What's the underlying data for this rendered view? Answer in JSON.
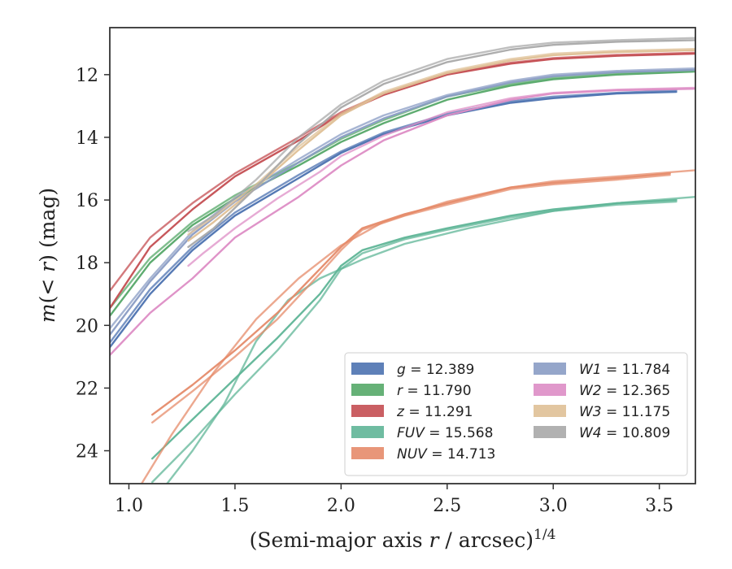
{
  "chart_data": {
    "type": "line",
    "xlabel": "(Semi-major axis r / arcsec)^1/4",
    "ylabel": "m(< r) (mag)",
    "xlim": [
      0.91,
      3.67
    ],
    "ylim": [
      25.05,
      10.5
    ],
    "y_inverted": true,
    "xticks": [
      "1.0",
      "1.5",
      "2.0",
      "2.5",
      "3.0",
      "3.5"
    ],
    "yticks": [
      "12",
      "14",
      "16",
      "18",
      "20",
      "22",
      "24"
    ],
    "grid": false,
    "legend_position": "lower-right",
    "series": [
      {
        "name": "g = 12.389",
        "color": "#4c72b0",
        "lines": [
          [
            [
              0.91,
              20.7
            ],
            [
              1.1,
              19.0
            ],
            [
              1.3,
              17.6
            ],
            [
              1.5,
              16.5
            ],
            [
              1.8,
              15.3
            ],
            [
              2.0,
              14.5
            ],
            [
              2.2,
              13.9
            ],
            [
              2.5,
              13.3
            ],
            [
              2.8,
              12.9
            ],
            [
              3.0,
              12.75
            ],
            [
              3.3,
              12.6
            ],
            [
              3.58,
              12.55
            ]
          ],
          [
            [
              0.91,
              20.55
            ],
            [
              1.1,
              18.85
            ],
            [
              1.3,
              17.5
            ],
            [
              1.5,
              16.4
            ],
            [
              1.8,
              15.2
            ],
            [
              2.0,
              14.45
            ],
            [
              2.2,
              13.85
            ],
            [
              2.5,
              13.25
            ],
            [
              2.8,
              12.85
            ],
            [
              3.0,
              12.7
            ],
            [
              3.3,
              12.58
            ],
            [
              3.58,
              12.5
            ]
          ]
        ]
      },
      {
        "name": "r = 11.790",
        "color": "#55a868",
        "lines": [
          [
            [
              0.91,
              19.7
            ],
            [
              1.1,
              18.0
            ],
            [
              1.3,
              16.8
            ],
            [
              1.5,
              15.95
            ],
            [
              1.8,
              14.9
            ],
            [
              2.0,
              14.15
            ],
            [
              2.2,
              13.55
            ],
            [
              2.5,
              12.8
            ],
            [
              2.8,
              12.35
            ],
            [
              3.0,
              12.15
            ],
            [
              3.3,
              12.0
            ],
            [
              3.67,
              11.9
            ]
          ],
          [
            [
              0.91,
              19.45
            ],
            [
              1.1,
              17.85
            ],
            [
              1.3,
              16.7
            ],
            [
              1.5,
              15.85
            ],
            [
              1.8,
              14.8
            ],
            [
              2.0,
              14.05
            ],
            [
              2.2,
              13.45
            ],
            [
              2.5,
              12.7
            ],
            [
              2.8,
              12.3
            ],
            [
              3.0,
              12.1
            ],
            [
              3.3,
              11.95
            ],
            [
              3.67,
              11.85
            ]
          ]
        ]
      },
      {
        "name": "z = 11.291",
        "color": "#c44e52",
        "lines": [
          [
            [
              0.91,
              19.45
            ],
            [
              1.1,
              17.5
            ],
            [
              1.3,
              16.3
            ],
            [
              1.5,
              15.25
            ],
            [
              1.8,
              14.1
            ],
            [
              2.0,
              13.25
            ],
            [
              2.2,
              12.65
            ],
            [
              2.5,
              12.0
            ],
            [
              2.8,
              11.65
            ],
            [
              3.0,
              11.5
            ],
            [
              3.3,
              11.4
            ],
            [
              3.67,
              11.33
            ]
          ],
          [
            [
              0.91,
              18.9
            ],
            [
              1.1,
              17.2
            ],
            [
              1.3,
              16.1
            ],
            [
              1.5,
              15.15
            ],
            [
              1.8,
              14.0
            ],
            [
              2.0,
              13.2
            ],
            [
              2.2,
              12.6
            ],
            [
              2.5,
              11.95
            ],
            [
              2.8,
              11.62
            ],
            [
              3.0,
              11.47
            ],
            [
              3.3,
              11.37
            ],
            [
              3.67,
              11.3
            ]
          ]
        ]
      },
      {
        "name": "FUV = 15.568",
        "color": "#5fb597",
        "lines": [
          [
            [
              1.11,
              24.25
            ],
            [
              1.3,
              23.0
            ],
            [
              1.5,
              21.7
            ],
            [
              1.7,
              20.4
            ],
            [
              1.9,
              19.0
            ],
            [
              2.0,
              18.1
            ],
            [
              2.1,
              17.6
            ],
            [
              2.3,
              17.2
            ],
            [
              2.5,
              16.9
            ],
            [
              2.8,
              16.5
            ],
            [
              3.0,
              16.3
            ],
            [
              3.3,
              16.1
            ],
            [
              3.58,
              16.0
            ]
          ],
          [
            [
              1.11,
              25.0
            ],
            [
              1.3,
              23.7
            ],
            [
              1.5,
              22.2
            ],
            [
              1.7,
              20.8
            ],
            [
              1.9,
              19.2
            ],
            [
              2.0,
              18.2
            ],
            [
              2.1,
              17.7
            ],
            [
              2.3,
              17.25
            ],
            [
              2.5,
              16.95
            ],
            [
              2.8,
              16.55
            ],
            [
              3.0,
              16.35
            ],
            [
              3.3,
              16.15
            ],
            [
              3.58,
              16.05
            ]
          ],
          [
            [
              1.18,
              25.05
            ],
            [
              1.3,
              24.0
            ],
            [
              1.45,
              22.5
            ],
            [
              1.6,
              20.5
            ],
            [
              1.75,
              19.2
            ],
            [
              1.9,
              18.5
            ],
            [
              2.1,
              17.9
            ],
            [
              2.3,
              17.4
            ],
            [
              2.6,
              16.9
            ],
            [
              3.0,
              16.35
            ],
            [
              3.3,
              16.1
            ],
            [
              3.67,
              15.9
            ]
          ]
        ]
      },
      {
        "name": "NUV = 14.713",
        "color": "#e58b6a",
        "lines": [
          [
            [
              1.11,
              22.85
            ],
            [
              1.3,
              21.9
            ],
            [
              1.5,
              20.8
            ],
            [
              1.7,
              19.6
            ],
            [
              1.9,
              18.2
            ],
            [
              2.0,
              17.5
            ],
            [
              2.1,
              16.9
            ],
            [
              2.3,
              16.45
            ],
            [
              2.5,
              16.1
            ],
            [
              2.8,
              15.6
            ],
            [
              3.0,
              15.45
            ],
            [
              3.3,
              15.3
            ],
            [
              3.55,
              15.15
            ]
          ],
          [
            [
              1.11,
              23.1
            ],
            [
              1.3,
              22.1
            ],
            [
              1.5,
              21.0
            ],
            [
              1.7,
              19.8
            ],
            [
              1.9,
              18.35
            ],
            [
              2.0,
              17.6
            ],
            [
              2.1,
              16.95
            ],
            [
              2.3,
              16.5
            ],
            [
              2.5,
              16.15
            ],
            [
              2.8,
              15.65
            ],
            [
              3.0,
              15.5
            ],
            [
              3.3,
              15.35
            ],
            [
              3.55,
              15.2
            ]
          ],
          [
            [
              1.06,
              25.05
            ],
            [
              1.2,
              23.5
            ],
            [
              1.4,
              21.5
            ],
            [
              1.6,
              19.8
            ],
            [
              1.8,
              18.5
            ],
            [
              2.0,
              17.45
            ],
            [
              2.2,
              16.7
            ],
            [
              2.5,
              16.05
            ],
            [
              2.8,
              15.6
            ],
            [
              3.0,
              15.4
            ],
            [
              3.3,
              15.25
            ],
            [
              3.67,
              15.05
            ]
          ]
        ]
      },
      {
        "name": "W1 = 11.784",
        "color": "#8a9cc4",
        "lines": [
          [
            [
              0.91,
              20.3
            ],
            [
              1.1,
              18.6
            ],
            [
              1.3,
              17.1
            ],
            [
              1.5,
              16.05
            ],
            [
              1.8,
              14.8
            ],
            [
              2.0,
              14.0
            ],
            [
              2.2,
              13.4
            ],
            [
              2.5,
              12.7
            ],
            [
              2.8,
              12.25
            ],
            [
              3.0,
              12.05
            ],
            [
              3.3,
              11.92
            ],
            [
              3.67,
              11.85
            ]
          ],
          [
            [
              0.91,
              20.1
            ],
            [
              1.1,
              18.5
            ],
            [
              1.3,
              17.0
            ],
            [
              1.5,
              15.95
            ],
            [
              1.8,
              14.7
            ],
            [
              2.0,
              13.9
            ],
            [
              2.2,
              13.3
            ],
            [
              2.5,
              12.65
            ],
            [
              2.8,
              12.2
            ],
            [
              3.0,
              12.0
            ],
            [
              3.3,
              11.88
            ],
            [
              3.67,
              11.8
            ]
          ]
        ]
      },
      {
        "name": "W2 = 12.365",
        "color": "#dd8dc5",
        "lines": [
          [
            [
              0.91,
              20.95
            ],
            [
              1.1,
              19.6
            ],
            [
              1.3,
              18.5
            ],
            [
              1.5,
              17.2
            ],
            [
              1.8,
              15.9
            ],
            [
              2.0,
              14.9
            ],
            [
              2.2,
              14.1
            ],
            [
              2.5,
              13.3
            ],
            [
              2.8,
              12.8
            ],
            [
              3.0,
              12.6
            ],
            [
              3.3,
              12.5
            ],
            [
              3.67,
              12.45
            ]
          ],
          [
            [
              1.28,
              18.1
            ],
            [
              1.35,
              17.7
            ],
            [
              1.5,
              16.9
            ],
            [
              1.7,
              15.95
            ],
            [
              1.9,
              15.1
            ],
            [
              2.0,
              14.6
            ],
            [
              2.2,
              13.95
            ],
            [
              2.5,
              13.2
            ],
            [
              2.8,
              12.75
            ],
            [
              3.0,
              12.58
            ],
            [
              3.3,
              12.48
            ],
            [
              3.67,
              12.42
            ]
          ]
        ]
      },
      {
        "name": "W3 = 11.175",
        "color": "#dfc096",
        "lines": [
          [
            [
              1.28,
              17.3
            ],
            [
              1.4,
              16.7
            ],
            [
              1.6,
              15.6
            ],
            [
              1.8,
              14.4
            ],
            [
              2.0,
              13.3
            ],
            [
              2.2,
              12.6
            ],
            [
              2.5,
              11.95
            ],
            [
              2.8,
              11.55
            ],
            [
              3.0,
              11.38
            ],
            [
              3.3,
              11.28
            ],
            [
              3.67,
              11.22
            ]
          ],
          [
            [
              1.28,
              17.1
            ],
            [
              1.4,
              16.55
            ],
            [
              1.6,
              15.5
            ],
            [
              1.8,
              14.3
            ],
            [
              2.0,
              13.25
            ],
            [
              2.2,
              12.55
            ],
            [
              2.5,
              11.9
            ],
            [
              2.8,
              11.5
            ],
            [
              3.0,
              11.33
            ],
            [
              3.3,
              11.24
            ],
            [
              3.67,
              11.18
            ]
          ]
        ]
      },
      {
        "name": "W4 = 10.809",
        "color": "#a9a9a9",
        "lines": [
          [
            [
              1.28,
              17.5
            ],
            [
              1.4,
              16.9
            ],
            [
              1.6,
              15.6
            ],
            [
              1.8,
              14.2
            ],
            [
              2.0,
              13.05
            ],
            [
              2.2,
              12.3
            ],
            [
              2.5,
              11.6
            ],
            [
              2.8,
              11.2
            ],
            [
              3.0,
              11.05
            ],
            [
              3.3,
              10.95
            ],
            [
              3.67,
              10.9
            ]
          ],
          [
            [
              1.28,
              17.0
            ],
            [
              1.4,
              16.5
            ],
            [
              1.6,
              15.35
            ],
            [
              1.8,
              14.0
            ],
            [
              2.0,
              12.95
            ],
            [
              2.2,
              12.2
            ],
            [
              2.5,
              11.5
            ],
            [
              2.8,
              11.12
            ],
            [
              3.0,
              10.98
            ],
            [
              3.3,
              10.9
            ],
            [
              3.67,
              10.83
            ]
          ]
        ]
      }
    ]
  }
}
